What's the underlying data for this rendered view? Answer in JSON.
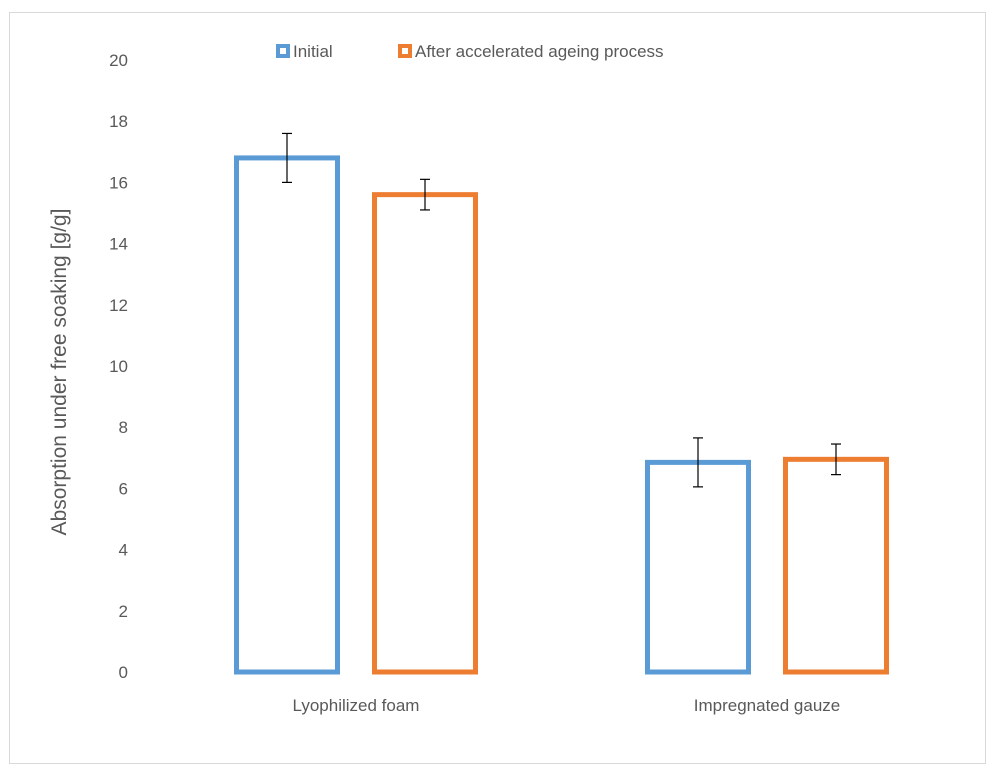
{
  "chart_data": {
    "type": "bar",
    "categories": [
      "Lyophilized foam",
      "Impregnated gauze"
    ],
    "series": [
      {
        "name": "Initial",
        "values": [
          16.8,
          6.85
        ],
        "errors": [
          0.8,
          0.8
        ],
        "color": "#5b9bd5"
      },
      {
        "name": "After accelerated ageing process",
        "values": [
          15.6,
          6.95
        ],
        "errors": [
          0.5,
          0.5
        ],
        "color": "#ed7d31"
      }
    ],
    "title": "",
    "xlabel": "",
    "ylabel": "Absorption under free soaking [g/g]",
    "ylim": [
      0,
      20
    ],
    "yticks": [
      0,
      2,
      4,
      6,
      8,
      10,
      12,
      14,
      16,
      18,
      20
    ],
    "grid": false,
    "legend_position": "top"
  }
}
